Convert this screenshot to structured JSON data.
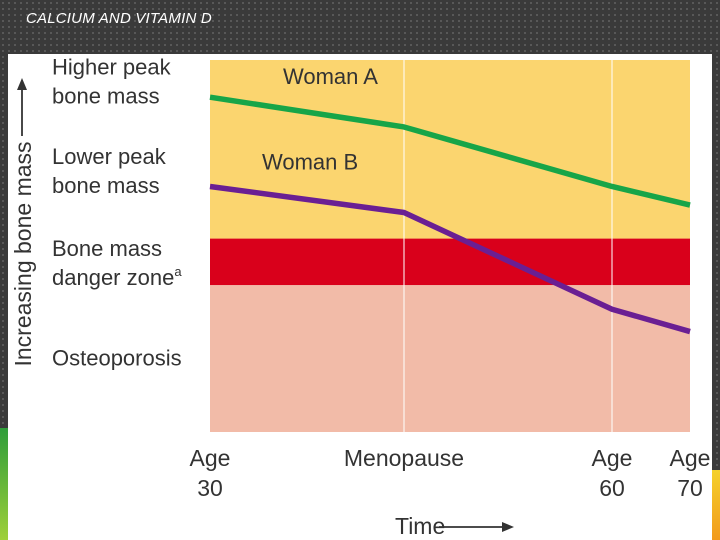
{
  "slide": {
    "title": "CALCIUM AND VITAMIN D"
  },
  "chart_data": {
    "type": "line",
    "title": "",
    "ylabel": "Increasing bone mass",
    "xlabel": "Time",
    "ylim": [
      0,
      100
    ],
    "x": [
      0,
      1,
      2,
      3
    ],
    "x_tick_labels": [
      {
        "line1": "Age",
        "line2": "30"
      },
      {
        "line1": "Menopause",
        "line2": ""
      },
      {
        "line1": "Age",
        "line2": "60"
      },
      {
        "line1": "Age",
        "line2": "70"
      }
    ],
    "zones": [
      {
        "name": "Osteoporosis",
        "from": 0,
        "to": 39.5,
        "color": "#f2bba8",
        "label": [
          "Osteoporosis"
        ]
      },
      {
        "name": "Bone mass danger zone",
        "from": 39.5,
        "to": 52,
        "color": "#d9001b",
        "label": [
          "Bone mass",
          "danger zone"
        ],
        "superscript": "a"
      },
      {
        "name": "Above danger zone",
        "from": 52,
        "to": 100,
        "color": "#fbd56f",
        "label": []
      }
    ],
    "y_annotations": [
      {
        "level": 95,
        "label": [
          "Higher peak",
          "bone mass"
        ]
      },
      {
        "level": 71,
        "label": [
          "Lower peak",
          "bone mass"
        ]
      }
    ],
    "series": [
      {
        "name": "Woman A",
        "color": "#17a548",
        "values": [
          90,
          82,
          66,
          61
        ]
      },
      {
        "name": "Woman B",
        "color": "#6a1f93",
        "values": [
          66,
          59,
          33,
          27
        ]
      }
    ],
    "grid_x": true
  }
}
